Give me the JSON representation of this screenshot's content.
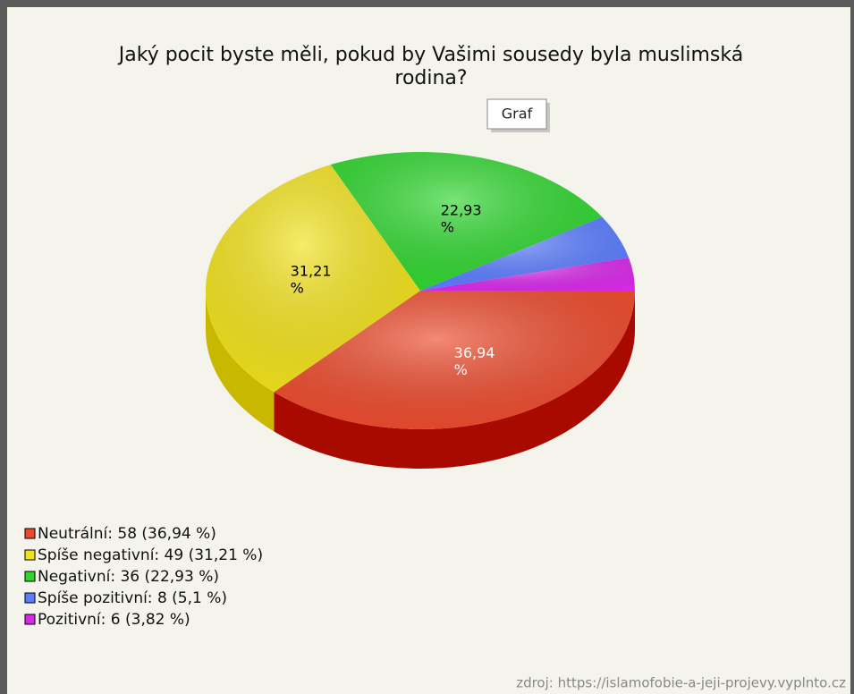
{
  "chart_data": {
    "type": "pie",
    "title": "Jaký pocit byste měli, pokud by Vašimi sousedy byla muslimská rodina?",
    "categories": [
      "Neutrální",
      "Spíše negativní",
      "Negativní",
      "Spíše pozitivní",
      "Pozitivní"
    ],
    "counts": [
      58,
      49,
      36,
      8,
      6
    ],
    "values": [
      36.94,
      31.21,
      22.93,
      5.1,
      3.82
    ],
    "value_labels": [
      "36,94 %",
      "31,21 %",
      "22,93 %",
      null,
      null
    ],
    "legend_labels": [
      "Neutrální: 58 (36,94 %)",
      "Spíše negativní: 49 (31,21 %)",
      "Negativní: 36 (22,93 %)",
      "Spíše pozitivní: 8 (5,1 %)",
      "Pozitivní: 6 (3,82 %)"
    ],
    "colors": [
      "#ec4a2c",
      "#f2e21a",
      "#2fd62f",
      "#5a7cff",
      "#d829ea"
    ],
    "side_colors": [
      "#a80a00",
      "#c9b800",
      "#149a14",
      "#2d49c9",
      "#9a10aa"
    ],
    "label_colors": [
      "#ffffff",
      "#000000",
      "#000000",
      "#000000",
      "#000000"
    ],
    "legend": "bottom-left"
  },
  "button_label": "Graf",
  "source": "zdroj: https://islamofobie-a-jeji-projevy.vyplnto.cz"
}
